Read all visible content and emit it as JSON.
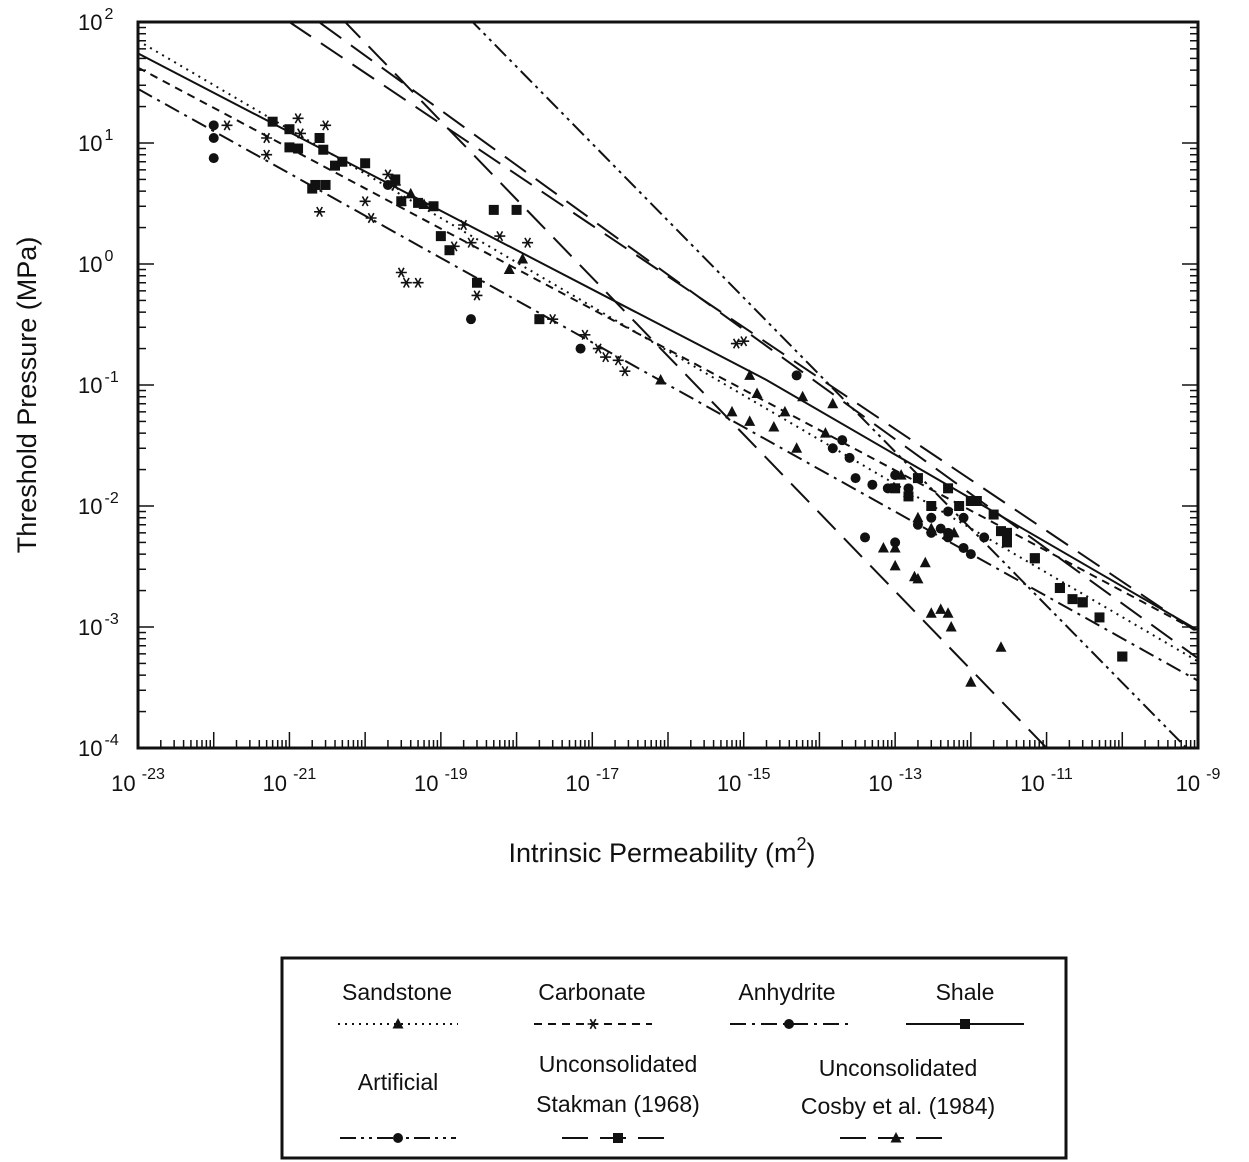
{
  "chart_data": {
    "type": "scatter",
    "title": "",
    "xlabel": "Intrinsic Permeability (m²)",
    "xlabel_base": "Intrinsic Permeability (m",
    "xlabel_sup": "2",
    "xlabel_close": ")",
    "ylabel": "Threshold Pressure (MPa)",
    "xscale": "log",
    "yscale": "log",
    "xlim": [
      1e-23,
      1e-09
    ],
    "ylim": [
      0.0001,
      100
    ],
    "grid": false,
    "legend_position": "bottom-center",
    "x_ticks": [
      {
        "base": "10",
        "exp": "-23"
      },
      {
        "base": "10",
        "exp": "-21"
      },
      {
        "base": "10",
        "exp": "-19"
      },
      {
        "base": "10",
        "exp": "-17"
      },
      {
        "base": "10",
        "exp": "-15"
      },
      {
        "base": "10",
        "exp": "-13"
      },
      {
        "base": "10",
        "exp": "-11"
      },
      {
        "base": "10",
        "exp": "-9"
      }
    ],
    "y_ticks": [
      {
        "base": "10",
        "exp": "-4"
      },
      {
        "base": "10",
        "exp": "-3"
      },
      {
        "base": "10",
        "exp": "-2"
      },
      {
        "base": "10",
        "exp": "-1"
      },
      {
        "base": "10",
        "exp": "0"
      },
      {
        "base": "10",
        "exp": "1"
      },
      {
        "base": "10",
        "exp": "2"
      }
    ],
    "series": [
      {
        "name": "Sandstone",
        "marker": "triangle",
        "line_style": "dotted",
        "fit": [
          [
            1e-23,
            70
          ],
          [
            1e-09,
            0.00052
          ]
        ],
        "points": [
          [
            3e-20,
            3.3
          ],
          [
            4e-20,
            3.8
          ],
          [
            6e-20,
            3.1
          ],
          [
            8e-19,
            0.9
          ],
          [
            1.2e-18,
            1.1
          ],
          [
            8e-17,
            0.11
          ],
          [
            7e-16,
            0.06
          ],
          [
            1.2e-15,
            0.12
          ],
          [
            1.5e-15,
            0.085
          ],
          [
            2.5e-15,
            0.045
          ],
          [
            3.5e-15,
            0.06
          ],
          [
            5e-15,
            0.03
          ],
          [
            6e-15,
            0.08
          ],
          [
            1.2e-13,
            0.018
          ],
          [
            1.5e-13,
            0.013
          ],
          [
            2e-13,
            0.008
          ],
          [
            3e-13,
            0.0065
          ],
          [
            6e-13,
            0.006
          ],
          [
            1.2e-14,
            0.04
          ],
          [
            1.5e-14,
            0.07
          ],
          [
            7e-14,
            0.0045
          ],
          [
            1e-13,
            0.0032
          ],
          [
            1.8e-13,
            0.0026
          ],
          [
            2.5e-13,
            0.0034
          ],
          [
            3e-13,
            0.0013
          ],
          [
            4e-13,
            0.0014
          ],
          [
            5.5e-13,
            0.001
          ],
          [
            1e-12,
            0.00035
          ],
          [
            2.5e-12,
            0.00068
          ],
          [
            1.2e-15,
            0.05
          ]
        ]
      },
      {
        "name": "Carbonate",
        "marker": "asterisk",
        "line_style": "short-dash",
        "fit": [
          [
            1e-23,
            42
          ],
          [
            1e-09,
            0.00092
          ]
        ],
        "points": [
          [
            1.5e-22,
            14
          ],
          [
            5e-22,
            11
          ],
          [
            5e-22,
            8
          ],
          [
            1.3e-21,
            16
          ],
          [
            1.4e-21,
            12
          ],
          [
            2.5e-21,
            2.7
          ],
          [
            3e-21,
            14
          ],
          [
            1e-20,
            3.3
          ],
          [
            1.2e-20,
            2.4
          ],
          [
            2e-20,
            5.5
          ],
          [
            2.5e-20,
            4.5
          ],
          [
            3e-20,
            0.85
          ],
          [
            3.5e-20,
            0.7
          ],
          [
            5e-20,
            0.7
          ],
          [
            1.5e-19,
            1.4
          ],
          [
            2e-19,
            2.1
          ],
          [
            2.5e-19,
            1.5
          ],
          [
            3e-19,
            0.55
          ],
          [
            6e-19,
            1.7
          ],
          [
            1.4e-18,
            1.5
          ],
          [
            3e-18,
            0.35
          ],
          [
            8e-18,
            0.26
          ],
          [
            1.2e-17,
            0.2
          ],
          [
            2.2e-17,
            0.16
          ],
          [
            2.7e-17,
            0.13
          ],
          [
            8e-16,
            0.22
          ],
          [
            1e-15,
            0.23
          ],
          [
            1.5e-17,
            0.17
          ]
        ]
      },
      {
        "name": "Anhydrite",
        "marker": "circle",
        "line_style": "dash-dot",
        "fit": [
          [
            1e-23,
            28
          ],
          [
            1e-09,
            0.00036
          ]
        ],
        "points": [
          [
            1e-22,
            14
          ],
          [
            1e-22,
            11
          ],
          [
            1e-22,
            7.5
          ],
          [
            2e-20,
            4.5
          ],
          [
            2.5e-19,
            0.35
          ],
          [
            7e-18,
            0.2
          ],
          [
            1e-13,
            0.005
          ],
          [
            2e-13,
            0.007
          ],
          [
            3e-13,
            0.006
          ],
          [
            4e-13,
            0.0065
          ],
          [
            5e-13,
            0.0055
          ],
          [
            8e-13,
            0.008
          ],
          [
            1e-12,
            0.004
          ]
        ]
      },
      {
        "name": "Shale",
        "marker": "square",
        "line_style": "solid",
        "fit": [
          [
            1e-23,
            55
          ],
          [
            2e-15,
            0.11
          ],
          [
            1e-09,
            0.00094
          ]
        ],
        "points": [
          [
            6e-22,
            15
          ],
          [
            1e-21,
            13
          ],
          [
            1e-21,
            9.2
          ],
          [
            1.3e-21,
            9
          ],
          [
            2e-21,
            4.2
          ],
          [
            2.2e-21,
            4.5
          ],
          [
            2.5e-21,
            11
          ],
          [
            2.8e-21,
            8.8
          ],
          [
            3e-21,
            4.5
          ],
          [
            4e-21,
            6.5
          ],
          [
            5e-21,
            7
          ],
          [
            1e-20,
            6.8
          ],
          [
            2.5e-20,
            5
          ],
          [
            3e-20,
            3.3
          ],
          [
            5e-20,
            3.2
          ],
          [
            8e-20,
            3
          ],
          [
            1e-19,
            1.7
          ],
          [
            1.3e-19,
            1.3
          ],
          [
            3e-19,
            0.7
          ],
          [
            5e-19,
            2.8
          ],
          [
            1e-18,
            2.8
          ],
          [
            2e-18,
            0.35
          ],
          [
            2e-13,
            0.017
          ],
          [
            5e-13,
            0.014
          ],
          [
            7e-13,
            0.01
          ],
          [
            1.2e-12,
            0.011
          ],
          [
            2e-12,
            0.0085
          ],
          [
            2.5e-12,
            0.0062
          ],
          [
            3e-12,
            0.005
          ],
          [
            7e-12,
            0.0037
          ],
          [
            1.5e-11,
            0.0021
          ],
          [
            2.2e-11,
            0.0017
          ],
          [
            3e-11,
            0.0016
          ],
          [
            5e-11,
            0.0012
          ],
          [
            1e-10,
            0.00057
          ]
        ]
      },
      {
        "name": "Artificial",
        "marker": "circle",
        "line_style": "dash-dot-dot",
        "fit": [
          [
            1e-20,
            800
          ],
          [
            1e-09,
            8e-05
          ]
        ],
        "points": [
          [
            5e-15,
            0.12
          ],
          [
            1.5e-14,
            0.03
          ],
          [
            2e-14,
            0.035
          ],
          [
            2.5e-14,
            0.025
          ],
          [
            3e-14,
            0.017
          ],
          [
            5e-14,
            0.015
          ],
          [
            8e-14,
            0.014
          ],
          [
            1e-13,
            0.018
          ],
          [
            1.5e-13,
            0.014
          ],
          [
            3e-13,
            0.008
          ],
          [
            5e-13,
            0.006
          ],
          [
            8e-13,
            0.0045
          ],
          [
            1.5e-12,
            0.0055
          ],
          [
            4e-14,
            0.0055
          ],
          [
            5e-13,
            0.009
          ]
        ]
      },
      {
        "name": "Unconsolidated Stakman (1968)",
        "label_line1": "Unconsolidated",
        "label_line2": "Stakman (1968)",
        "marker": "square",
        "line_style": "long-dash",
        "fit": [
          [
            1e-21,
            150
          ],
          [
            1e-09,
            0.00055
          ]
        ],
        "points": [
          [
            1e-13,
            0.014
          ],
          [
            1.5e-13,
            0.012
          ],
          [
            3e-13,
            0.01
          ],
          [
            1e-12,
            0.011
          ],
          [
            3e-12,
            0.006
          ],
          [
            7e-12,
            0.0037
          ],
          [
            1.5e-11,
            0.0021
          ],
          [
            3e-11,
            0.0016
          ],
          [
            1e-10,
            0.00057
          ]
        ]
      },
      {
        "name": "Unconsolidated Cosby et al. (1984)",
        "label_line1": "Unconsolidated",
        "label_line2": "Cosby et al. (1984)",
        "marker": "triangle",
        "line_style": "long-dash",
        "fit": [
          [
            1e-21,
            300
          ],
          [
            1e-11,
            0.0001
          ]
        ],
        "points": [
          [
            1e-13,
            0.0045
          ],
          [
            2e-13,
            0.0025
          ],
          [
            5e-13,
            0.0013
          ],
          [
            1e-12,
            0.00035
          ]
        ]
      }
    ],
    "extra_fits": [
      {
        "line_style": "long-dash",
        "fit": [
          [
            1e-21,
            100
          ],
          [
            1e-09,
            0.0009
          ]
        ]
      }
    ]
  }
}
